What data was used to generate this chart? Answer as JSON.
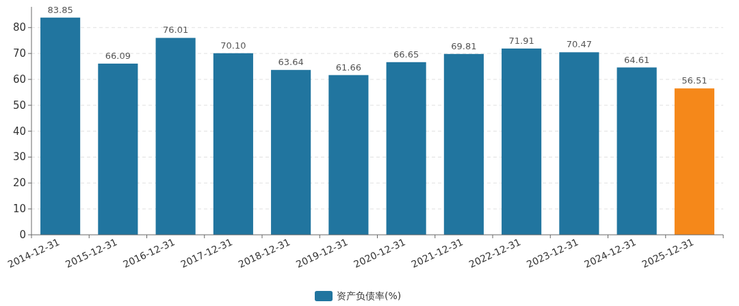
{
  "chart_data": {
    "type": "bar",
    "categories": [
      "2014-12-31",
      "2015-12-31",
      "2016-12-31",
      "2017-12-31",
      "2018-12-31",
      "2019-12-31",
      "2020-12-31",
      "2021-12-31",
      "2022-12-31",
      "2023-12-31",
      "2024-12-31",
      "2025-12-31"
    ],
    "series": [
      {
        "name": "资产负债率(%)",
        "color": "#21759f",
        "colors": [
          "#21759f",
          "#21759f",
          "#21759f",
          "#21759f",
          "#21759f",
          "#21759f",
          "#21759f",
          "#21759f",
          "#21759f",
          "#21759f",
          "#21759f",
          "#f5881a"
        ],
        "values": [
          83.85,
          66.09,
          76.01,
          70.1,
          63.64,
          61.66,
          66.65,
          69.81,
          71.91,
          70.47,
          64.61,
          56.51
        ],
        "value_labels": [
          "83.85",
          "66.09",
          "76.01",
          "70.10",
          "63.64",
          "61.66",
          "66.65",
          "69.81",
          "71.91",
          "70.47",
          "64.61",
          "56.51"
        ]
      }
    ],
    "ylim": [
      0,
      88
    ],
    "yticks": [
      0,
      10,
      20,
      30,
      40,
      50,
      60,
      70,
      80
    ],
    "grid": "y",
    "legend": "bottom"
  }
}
